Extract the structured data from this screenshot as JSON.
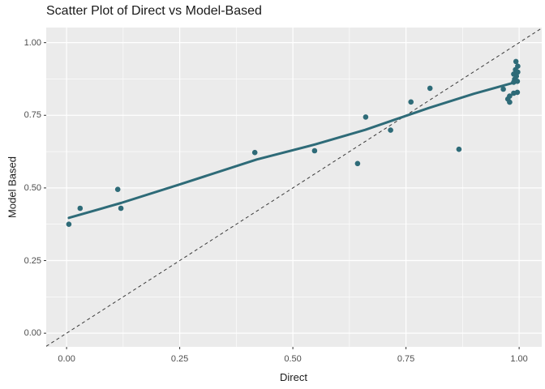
{
  "chart_data": {
    "type": "scatter",
    "title": "Scatter Plot of Direct vs Model-Based",
    "xlabel": "Direct",
    "ylabel": "Model Based",
    "xlim": [
      -0.045,
      1.05
    ],
    "ylim": [
      -0.047,
      1.052
    ],
    "grid": true,
    "legend": "none",
    "x_ticks": {
      "values": [
        0,
        0.25,
        0.5,
        0.75,
        1.0
      ],
      "labels": [
        "0.00",
        "0.25",
        "0.50",
        "0.75",
        "1.00"
      ]
    },
    "y_ticks": {
      "values": [
        0,
        0.25,
        0.5,
        0.75,
        1.0
      ],
      "labels": [
        "0.00",
        "0.25",
        "0.50",
        "0.75",
        "1.00"
      ]
    },
    "minor_ticks": [
      0.125,
      0.375,
      0.625,
      0.875
    ],
    "points": [
      [
        0.005,
        0.375
      ],
      [
        0.03,
        0.43
      ],
      [
        0.113,
        0.495
      ],
      [
        0.12,
        0.43
      ],
      [
        0.416,
        0.622
      ],
      [
        0.548,
        0.628
      ],
      [
        0.643,
        0.584
      ],
      [
        0.661,
        0.744
      ],
      [
        0.716,
        0.699
      ],
      [
        0.761,
        0.796
      ],
      [
        0.803,
        0.843
      ],
      [
        0.867,
        0.633
      ],
      [
        0.965,
        0.84
      ],
      [
        0.993,
        0.935
      ],
      [
        0.997,
        0.919
      ],
      [
        0.992,
        0.907
      ],
      [
        0.997,
        0.899
      ],
      [
        0.988,
        0.892
      ],
      [
        0.994,
        0.885
      ],
      [
        0.99,
        0.874
      ],
      [
        0.996,
        0.867
      ],
      [
        0.988,
        0.864
      ],
      [
        0.996,
        0.829
      ],
      [
        0.988,
        0.826
      ],
      [
        0.979,
        0.816
      ],
      [
        0.975,
        0.806
      ],
      [
        0.979,
        0.795
      ]
    ],
    "trend_line": {
      "name": "smooth-fit",
      "points": [
        [
          0.005,
          0.397
        ],
        [
          0.12,
          0.448
        ],
        [
          0.25,
          0.512
        ],
        [
          0.42,
          0.598
        ],
        [
          0.55,
          0.65
        ],
        [
          0.66,
          0.7
        ],
        [
          0.8,
          0.775
        ],
        [
          0.9,
          0.824
        ],
        [
          0.997,
          0.866
        ]
      ]
    },
    "identity_line": {
      "slope": 1,
      "intercept": 0,
      "line_style": "dashed"
    },
    "colors": {
      "point": "#2E6B78",
      "trend": "#2E6B78",
      "identity": "#3A3A3A",
      "panel_bg": "#EBEBEB",
      "grid": "#FFFFFF",
      "tick_mark": "#333333",
      "tick_label": "#4D4D4D",
      "text": "#1A1A1A",
      "background": "#FFFFFF"
    }
  }
}
